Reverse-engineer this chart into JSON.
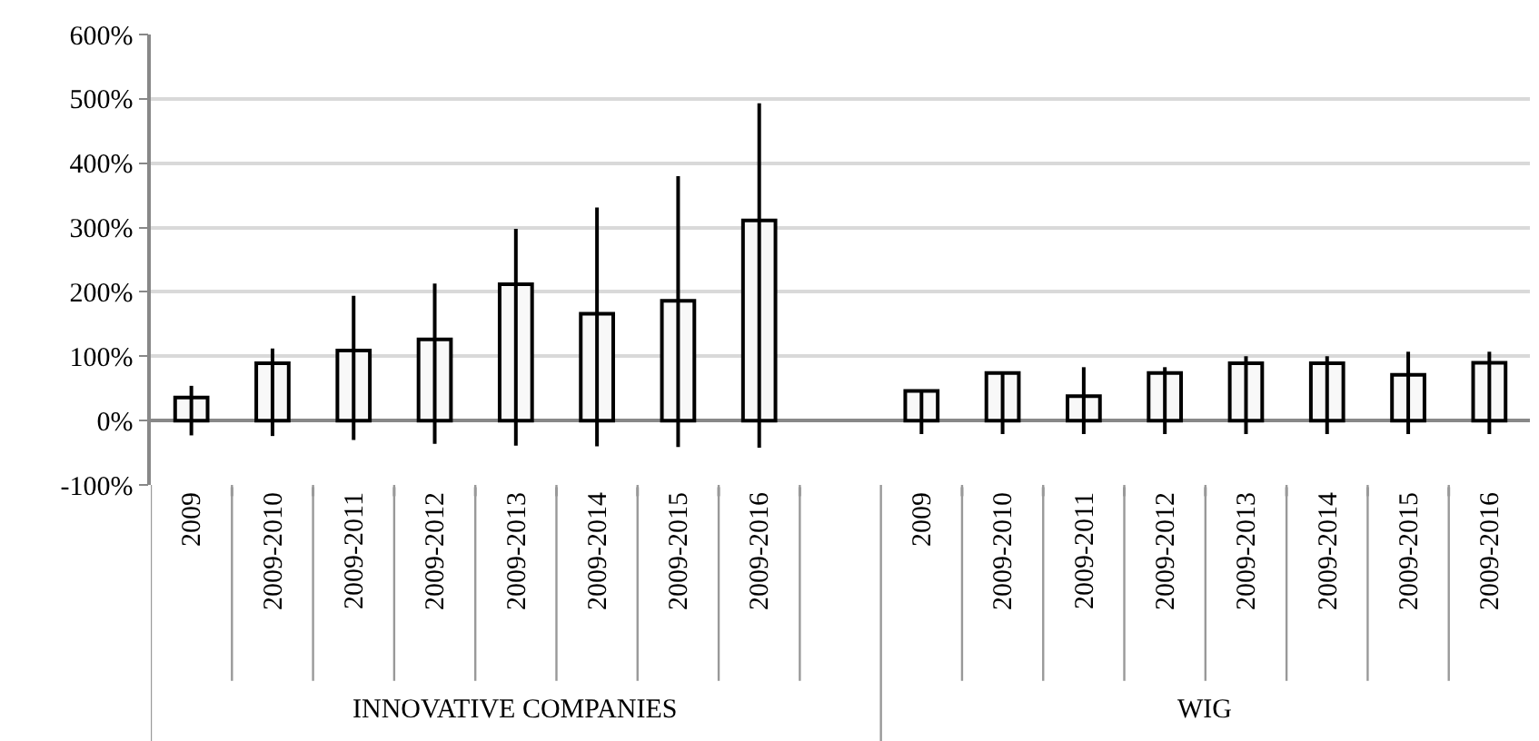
{
  "chart_data": {
    "type": "bar",
    "categories": [
      "2009",
      "2009-2010",
      "2009-2011",
      "2009-2012",
      "2009-2013",
      "2009-2014",
      "2009-2015",
      "2009-2016",
      null,
      "2009",
      "2009-2010",
      "2009-2011",
      "2009-2012",
      "2009-2013",
      "2009-2014",
      "2009-2015",
      "2009-2016"
    ],
    "values": [
      36,
      89,
      109,
      126,
      212,
      166,
      186,
      311,
      null,
      46,
      74,
      38,
      74,
      89,
      89,
      71,
      90
    ],
    "errors": [
      [
        -23,
        54
      ],
      [
        -24,
        112
      ],
      [
        -30,
        194
      ],
      [
        -36,
        213
      ],
      [
        -39,
        298
      ],
      [
        -40,
        331
      ],
      [
        -41,
        380
      ],
      [
        -42,
        493
      ],
      null,
      [
        -21,
        46
      ],
      [
        -21,
        74
      ],
      [
        -21,
        83
      ],
      [
        -21,
        83
      ],
      [
        -21,
        100
      ],
      [
        -21,
        100
      ],
      [
        -21,
        107
      ],
      [
        -21,
        107
      ]
    ],
    "color": "#f8f8f8",
    "annotations": [
      "INNOVATIVE COMPANIES",
      "WIG"
    ],
    "ylim": [
      -100,
      600
    ],
    "yticks": [
      {
        "value": -100,
        "label": "-100%"
      },
      {
        "value": 0,
        "label": "0%"
      },
      {
        "value": 100,
        "label": "100%"
      },
      {
        "value": 200,
        "label": "200%"
      },
      {
        "value": 300,
        "label": "300%"
      },
      {
        "value": 400,
        "label": "400%"
      },
      {
        "value": 500,
        "label": "500%"
      },
      {
        "value": 600,
        "label": "600%"
      }
    ],
    "grid": "y",
    "legend": false
  }
}
